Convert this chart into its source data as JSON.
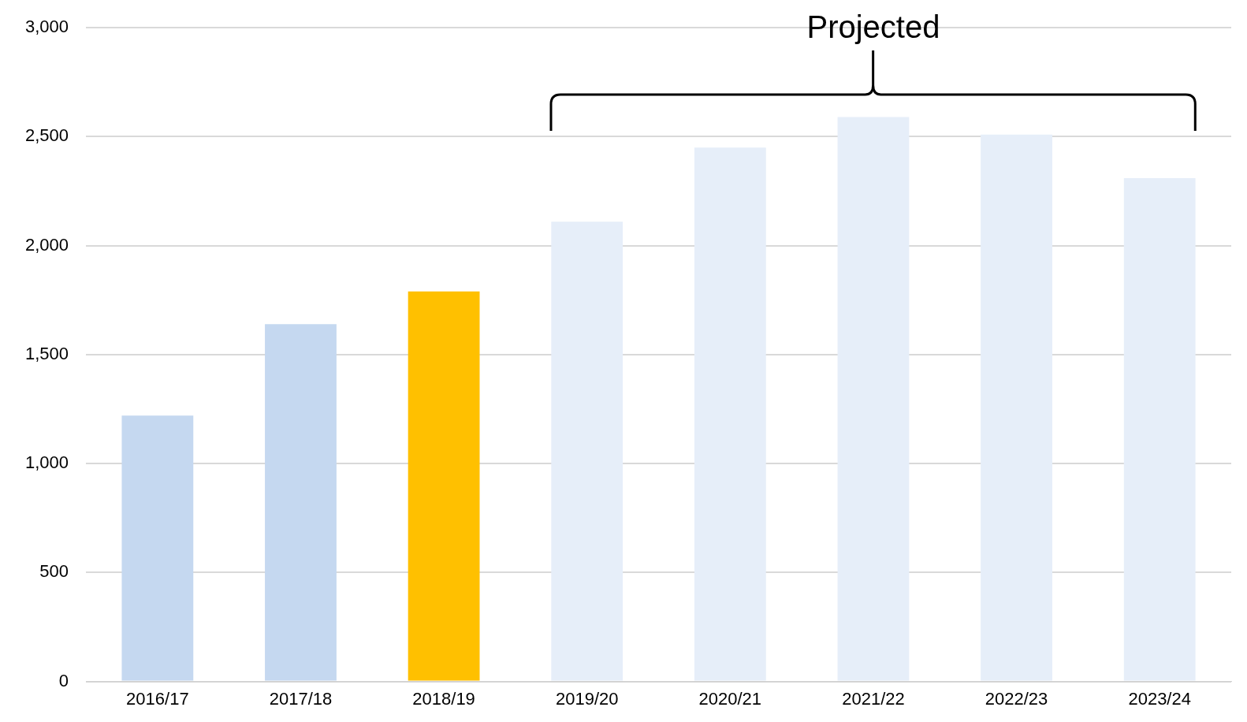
{
  "chart_data": {
    "type": "bar",
    "categories": [
      "2016/17",
      "2017/18",
      "2018/19",
      "2019/20",
      "2020/21",
      "2021/22",
      "2022/23",
      "2023/24"
    ],
    "values": [
      1220,
      1640,
      1790,
      2110,
      2450,
      2590,
      2510,
      2310
    ],
    "colors": [
      "#c5d8f0",
      "#c5d8f0",
      "#ffc000",
      "#e6eef9",
      "#e6eef9",
      "#e6eef9",
      "#e6eef9",
      "#e6eef9"
    ],
    "ylim": [
      0,
      3000
    ],
    "yticks": [
      0,
      500,
      {
        "value": 1000,
        "label": "1,000"
      },
      {
        "value": 1500,
        "label": "1,500"
      },
      {
        "value": 2000,
        "label": "2,000"
      },
      {
        "value": 2500,
        "label": "2,500"
      },
      {
        "value": 3000,
        "label": "3,000"
      }
    ],
    "grid": "y",
    "annotations": [
      "Projected"
    ]
  }
}
